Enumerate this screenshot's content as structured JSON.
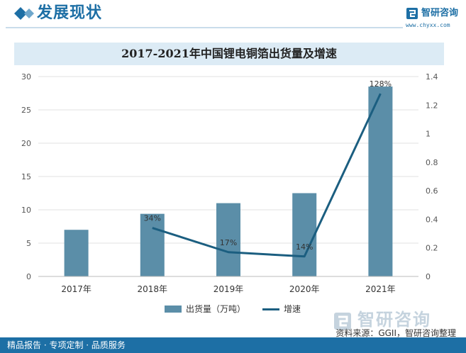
{
  "header": {
    "title": "发展现状",
    "icon": "diamond-arrow-icon"
  },
  "brand": {
    "name": "智研咨询",
    "url": "www.chyxx.com",
    "icon": "zhiyan-logo-icon"
  },
  "chart_data": {
    "type": "bar",
    "title": "2017-2021年中国锂电铜箔出货量及增速",
    "categories": [
      "2017年",
      "2018年",
      "2019年",
      "2020年",
      "2021年"
    ],
    "series": [
      {
        "name": "出货量（万吨）",
        "type": "bar",
        "axis": "left",
        "values": [
          7.0,
          9.4,
          11.0,
          12.5,
          28.5
        ],
        "color": "#5b8ea8"
      },
      {
        "name": "增速",
        "type": "line",
        "axis": "right",
        "values": [
          null,
          0.34,
          0.17,
          0.14,
          1.28
        ],
        "labels": [
          null,
          "34%",
          "17%",
          "14%",
          "128%"
        ],
        "color": "#1b5e80"
      }
    ],
    "y_left": {
      "min": 0,
      "max": 30,
      "ticks": [
        "0",
        "5",
        "10",
        "15",
        "20",
        "25",
        "30"
      ]
    },
    "y_right": {
      "min": 0,
      "max": 1.4,
      "ticks": [
        "0",
        "0.2",
        "0.4",
        "0.6",
        "0.8",
        "1",
        "1.2",
        "1.4"
      ]
    },
    "grid": true,
    "legend_position": "bottom"
  },
  "legend": {
    "bar_label": "出货量（万吨）",
    "line_label": "增速"
  },
  "footer": {
    "source": "资料来源：GGII，智研咨询整理",
    "tagline": "精品报告 · 专项定制 · 品质服务",
    "logo_text": "智研咨询",
    "logo_icon": "zhiyan-logo-icon"
  }
}
